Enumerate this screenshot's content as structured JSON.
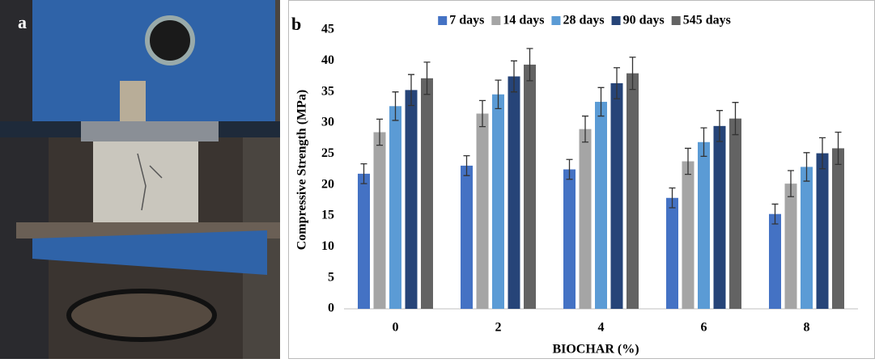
{
  "panel_a": {
    "label": "a"
  },
  "chart_data": {
    "type": "bar",
    "panel_label": "b",
    "xlabel": "BIOCHAR (%)",
    "ylabel": "Compressive Strength (MPa)",
    "categories": [
      "0",
      "2",
      "4",
      "6",
      "8"
    ],
    "series": [
      {
        "name": "7 days",
        "color": "#4472c4",
        "values": [
          21.8,
          23.1,
          22.5,
          17.9,
          15.3
        ],
        "errors": [
          1.6,
          1.6,
          1.6,
          1.6,
          1.6
        ]
      },
      {
        "name": "14 days",
        "color": "#a5a5a5",
        "values": [
          28.5,
          31.5,
          29.0,
          23.8,
          20.2
        ],
        "errors": [
          2.1,
          2.1,
          2.1,
          2.1,
          2.1
        ]
      },
      {
        "name": "28 days",
        "color": "#5b9bd5",
        "values": [
          32.7,
          34.6,
          33.4,
          26.9,
          22.9
        ],
        "errors": [
          2.3,
          2.3,
          2.3,
          2.3,
          2.3
        ]
      },
      {
        "name": "90 days",
        "color": "#264478",
        "values": [
          35.3,
          37.5,
          36.4,
          29.5,
          25.1
        ],
        "errors": [
          2.5,
          2.5,
          2.5,
          2.5,
          2.5
        ]
      },
      {
        "name": "545 days",
        "color": "#636363",
        "values": [
          37.2,
          39.4,
          38.0,
          30.7,
          25.9
        ],
        "errors": [
          2.6,
          2.6,
          2.6,
          2.6,
          2.6
        ]
      }
    ],
    "ylim": [
      0,
      45
    ],
    "yticks": [
      0,
      5,
      10,
      15,
      20,
      25,
      30,
      35,
      40,
      45
    ],
    "grid": false,
    "legend": "top"
  }
}
